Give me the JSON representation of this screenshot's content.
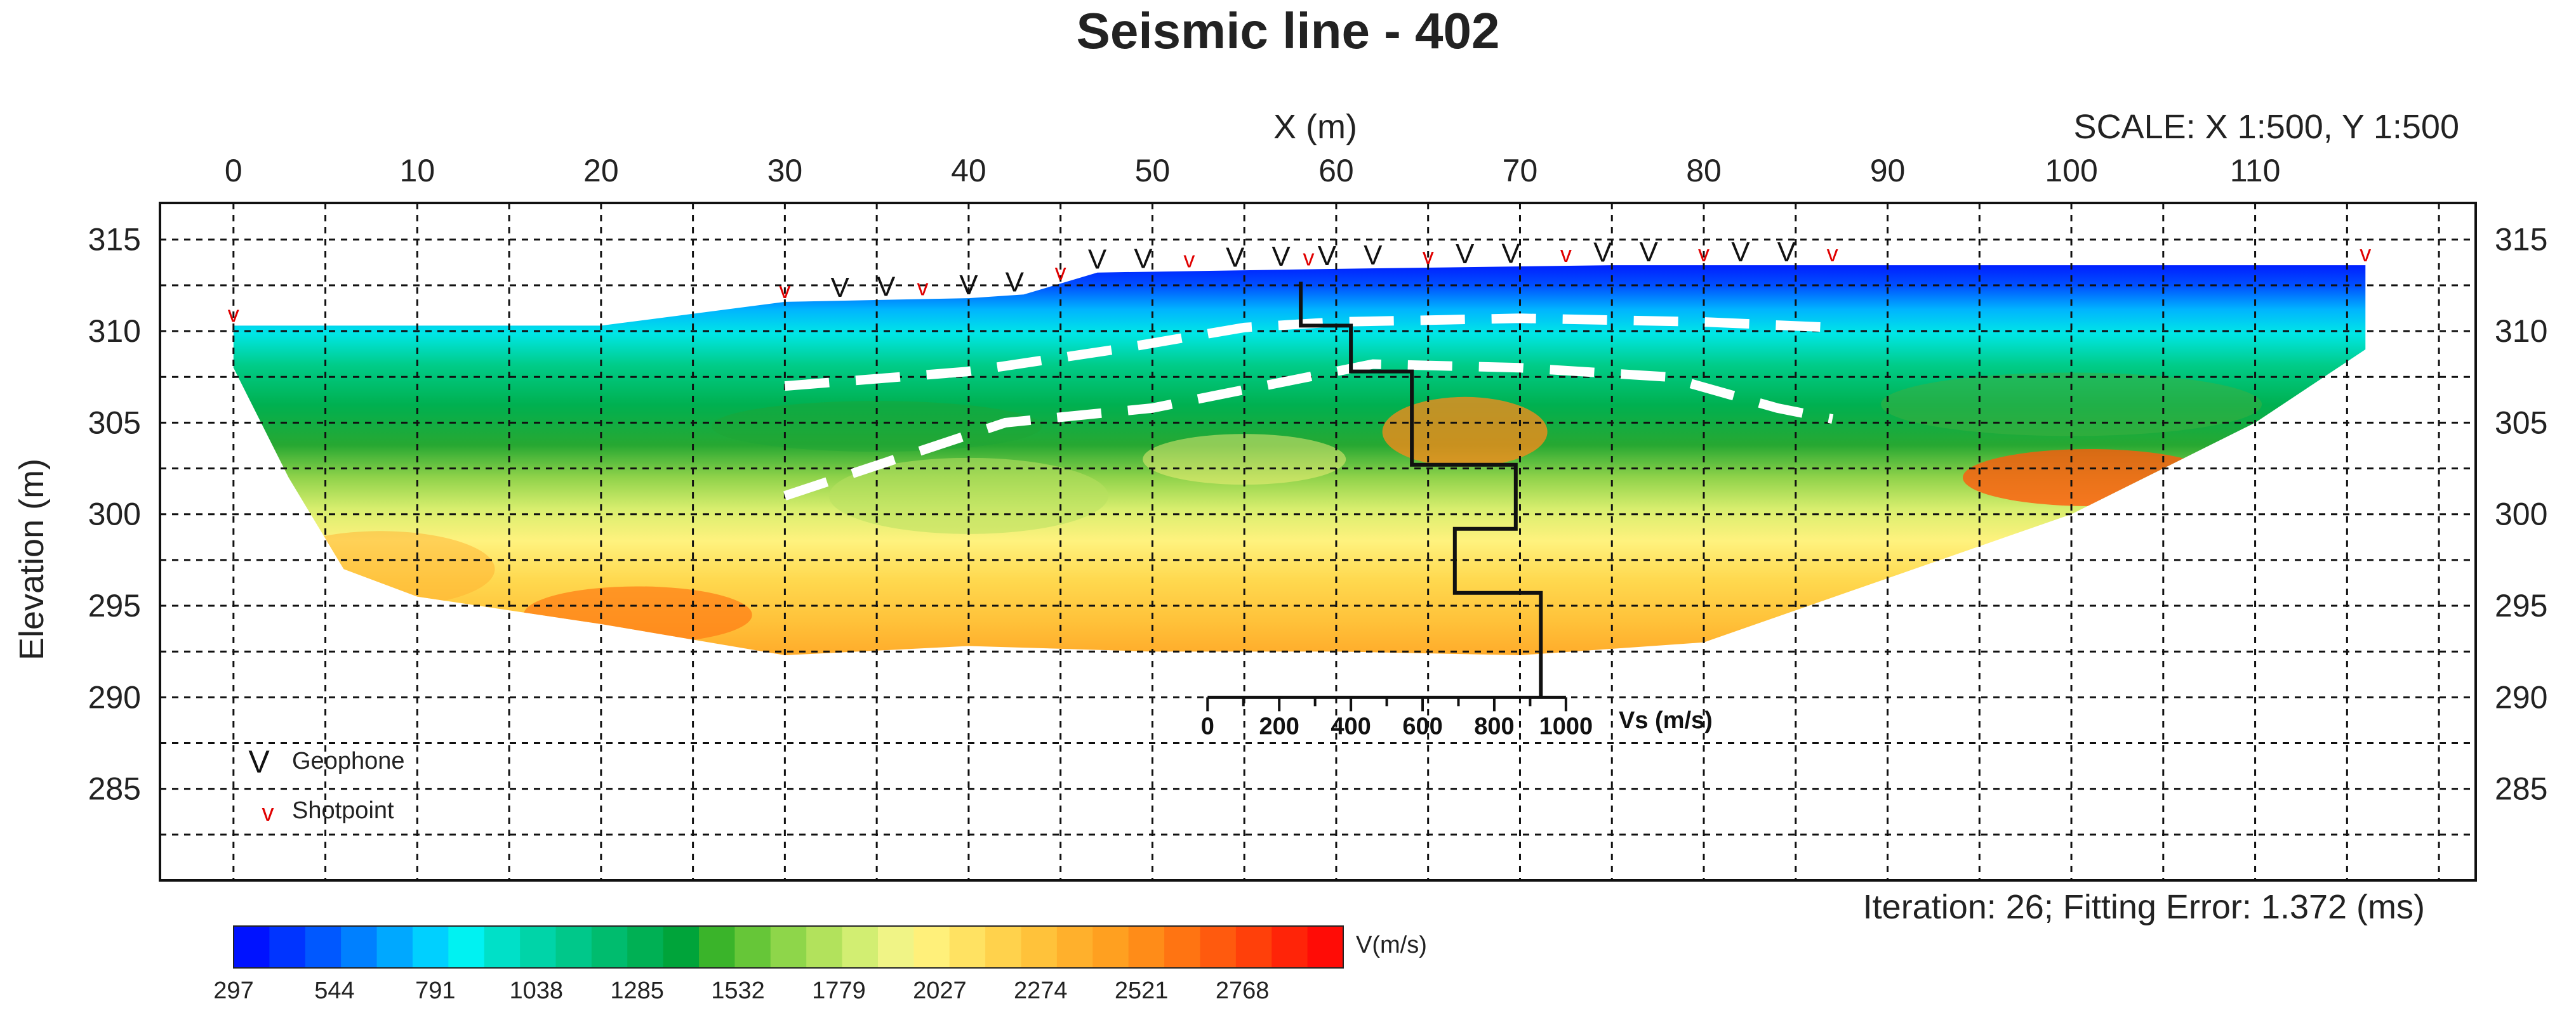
{
  "chart_data": {
    "type": "heatmap",
    "title": "Seismic line - 402",
    "xlabel": "X (m)",
    "ylabel": "Elevation (m)",
    "scale_label": "SCALE: X 1:500, Y 1:500",
    "xlim": [
      -4,
      122
    ],
    "ylim": [
      280,
      317
    ],
    "x_ticks": [
      0,
      10,
      20,
      30,
      40,
      50,
      60,
      70,
      80,
      90,
      100,
      110
    ],
    "y_ticks": [
      315,
      310,
      305,
      300,
      295,
      290,
      285
    ],
    "grid": true,
    "colorbar": {
      "label": "V(m/s)",
      "ticks": [
        297,
        544,
        791,
        1038,
        1285,
        1532,
        1779,
        2027,
        2274,
        2521,
        2768
      ],
      "colors": [
        "#0012ff",
        "#0034ff",
        "#0058ff",
        "#0080ff",
        "#00a8ff",
        "#00d0ff",
        "#00f2f2",
        "#00e0c8",
        "#00d4a8",
        "#00c88a",
        "#00bc6e",
        "#00b054",
        "#00a43a",
        "#3ab42a",
        "#66c638",
        "#8ed64a",
        "#b2e25c",
        "#d2ee72",
        "#f0f486",
        "#fff07a",
        "#ffe262",
        "#ffd24c",
        "#ffc23a",
        "#ffb02c",
        "#ffa020",
        "#ff8c18",
        "#ff7412",
        "#ff5a0e",
        "#ff400a",
        "#ff2408",
        "#ff0c06"
      ]
    },
    "surface_profile": [
      [
        0,
        310.3
      ],
      [
        10,
        310.3
      ],
      [
        20,
        310.3
      ],
      [
        30,
        311.6
      ],
      [
        40,
        311.8
      ],
      [
        43,
        312.0
      ],
      [
        47,
        313.2
      ],
      [
        60,
        313.4
      ],
      [
        75,
        313.6
      ],
      [
        85,
        313.6
      ],
      [
        92,
        313.6
      ],
      [
        105,
        313.6
      ],
      [
        116,
        313.6
      ]
    ],
    "base_profile": [
      [
        0,
        308
      ],
      [
        3,
        302
      ],
      [
        6,
        297
      ],
      [
        10,
        295.5
      ],
      [
        20,
        294
      ],
      [
        30,
        292.3
      ],
      [
        40,
        292.8
      ],
      [
        50,
        292.5
      ],
      [
        60,
        292.5
      ],
      [
        70,
        292.3
      ],
      [
        80,
        293
      ],
      [
        90,
        296.5
      ],
      [
        100,
        300
      ],
      [
        110,
        305
      ],
      [
        116,
        309
      ]
    ],
    "geophones_x": [
      33,
      35.5,
      40,
      42.5,
      47,
      49.5,
      54.5,
      57,
      59.5,
      62,
      67,
      69.5,
      74.5,
      77,
      82,
      84.5
    ],
    "shotpoints_x": [
      0,
      30,
      37.5,
      45,
      52,
      58.5,
      65,
      72.5,
      80,
      87,
      116
    ],
    "velocity_boundaries": [
      {
        "name": "interface-1",
        "points": [
          [
            30,
            307
          ],
          [
            40,
            307.8
          ],
          [
            48,
            309
          ],
          [
            55,
            310.2
          ],
          [
            60,
            310.5
          ],
          [
            70,
            310.7
          ],
          [
            80,
            310.5
          ],
          [
            87,
            310.2
          ]
        ]
      },
      {
        "name": "interface-2",
        "points": [
          [
            30,
            301
          ],
          [
            36,
            303
          ],
          [
            42,
            305
          ],
          [
            50,
            305.8
          ],
          [
            57,
            307.2
          ],
          [
            62,
            308.2
          ],
          [
            70,
            308
          ],
          [
            78,
            307.5
          ],
          [
            84,
            305.8
          ],
          [
            87,
            305.2
          ]
        ]
      }
    ],
    "vs_profile": {
      "label": "Vs (m/s)",
      "ticks": [
        0,
        200,
        400,
        600,
        800,
        1000
      ],
      "steps": [
        [
          260,
          312.7
        ],
        [
          260,
          310.3
        ],
        [
          400,
          310.3
        ],
        [
          400,
          307.8
        ],
        [
          570,
          307.8
        ],
        [
          570,
          302.7
        ],
        [
          860,
          302.7
        ],
        [
          860,
          299.2
        ],
        [
          690,
          299.2
        ],
        [
          690,
          295.7
        ],
        [
          930,
          295.7
        ],
        [
          930,
          290
        ]
      ],
      "axis_elevation": 290
    },
    "legend": {
      "geophone": "Geophone",
      "shotpoint": "Shotpoint"
    },
    "iteration_text": "Iteration: 26; Fitting Error: 1.372 (ms)"
  },
  "colors": {
    "geophone": "#111111",
    "shotpoint": "#e00000",
    "boundary": "#ffffff"
  }
}
